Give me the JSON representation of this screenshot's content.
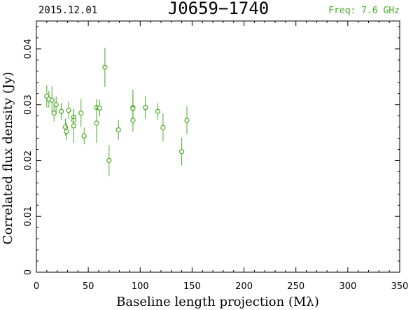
{
  "header": {
    "date": "2015.12.01",
    "source": "J0659−1740",
    "freq": "Freq: 7.6 GHz"
  },
  "colors": {
    "axis": "#000000",
    "data": "#44aa22",
    "freq_text": "#44aa22"
  },
  "chart_data": {
    "type": "scatter",
    "title": "J0659−1740",
    "xlabel": "Baseline length projection (Mλ)",
    "ylabel": "Correlated flux density (Jy)",
    "xlim": [
      0,
      350
    ],
    "ylim": [
      0,
      0.045
    ],
    "xticks": [
      0,
      50,
      100,
      150,
      200,
      250,
      300,
      350
    ],
    "yticks": [
      0,
      0.01,
      0.02,
      0.03,
      0.04
    ],
    "xtick_labels": [
      "0",
      "50",
      "100",
      "150",
      "200",
      "250",
      "300",
      "350"
    ],
    "ytick_labels": [
      "0",
      "0.01",
      "0.02",
      "0.03",
      "0.04"
    ],
    "grid": false,
    "points": [
      {
        "x": 10,
        "y": 0.0315,
        "err": 0.002
      },
      {
        "x": 12,
        "y": 0.031,
        "err": 0.0015
      },
      {
        "x": 15,
        "y": 0.0308,
        "err": 0.0025
      },
      {
        "x": 17,
        "y": 0.0285,
        "err": 0.0015
      },
      {
        "x": 19,
        "y": 0.03,
        "err": 0.0015
      },
      {
        "x": 24,
        "y": 0.0288,
        "err": 0.0015
      },
      {
        "x": 28,
        "y": 0.026,
        "err": 0.0015
      },
      {
        "x": 29,
        "y": 0.0252,
        "err": 0.0015
      },
      {
        "x": 31,
        "y": 0.029,
        "err": 0.0015
      },
      {
        "x": 36,
        "y": 0.0278,
        "err": 0.0015
      },
      {
        "x": 36,
        "y": 0.0272,
        "err": 0.0015
      },
      {
        "x": 36,
        "y": 0.0262,
        "err": 0.003
      },
      {
        "x": 43,
        "y": 0.0285,
        "err": 0.0025
      },
      {
        "x": 46,
        "y": 0.0244,
        "err": 0.0015
      },
      {
        "x": 58,
        "y": 0.0295,
        "err": 0.0015
      },
      {
        "x": 58,
        "y": 0.0267,
        "err": 0.0035
      },
      {
        "x": 61,
        "y": 0.0294,
        "err": 0.0015
      },
      {
        "x": 66,
        "y": 0.0367,
        "err": 0.0035
      },
      {
        "x": 70,
        "y": 0.02,
        "err": 0.0028
      },
      {
        "x": 79,
        "y": 0.0255,
        "err": 0.0018
      },
      {
        "x": 93,
        "y": 0.0295,
        "err": 0.0032
      },
      {
        "x": 93,
        "y": 0.0293,
        "err": 0.0025
      },
      {
        "x": 93,
        "y": 0.0272,
        "err": 0.002
      },
      {
        "x": 105,
        "y": 0.0295,
        "err": 0.002
      },
      {
        "x": 117,
        "y": 0.0288,
        "err": 0.0015
      },
      {
        "x": 122,
        "y": 0.0259,
        "err": 0.0025
      },
      {
        "x": 140,
        "y": 0.0216,
        "err": 0.0025
      },
      {
        "x": 145,
        "y": 0.0272,
        "err": 0.0025
      }
    ]
  }
}
